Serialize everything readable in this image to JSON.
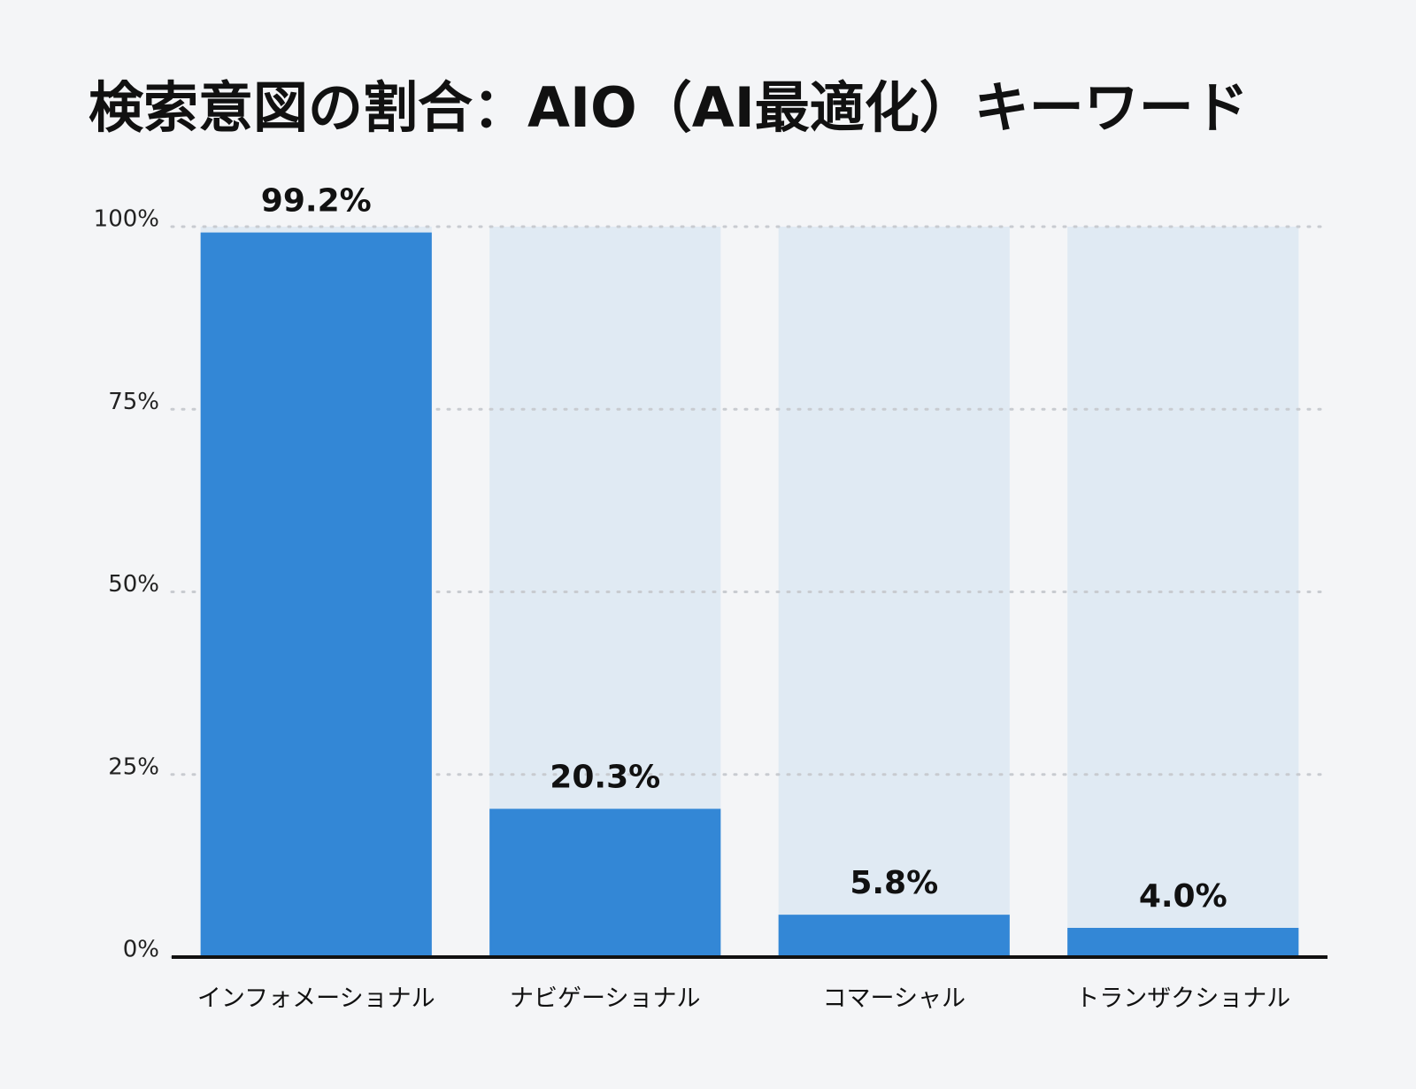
{
  "chart_data": {
    "type": "bar",
    "title": "検索意図の割合：AIO（AI最適化）キーワード",
    "categories": [
      "インフォメーショナル",
      "ナビゲーショナル",
      "コマーシャル",
      "トランザクショナル"
    ],
    "values": [
      99.2,
      20.3,
      5.8,
      4.0
    ],
    "value_labels": [
      "99.2%",
      "20.3%",
      "5.8%",
      "4.0%"
    ],
    "color": "#3387d6",
    "track_color": "#e0eaf3",
    "ylim": [
      0,
      100
    ],
    "yticks": [
      {
        "value": 0,
        "label": "0%"
      },
      {
        "value": 25,
        "label": "25%"
      },
      {
        "value": 50,
        "label": "50%"
      },
      {
        "value": 75,
        "label": "75%"
      },
      {
        "value": 100,
        "label": "100%"
      }
    ],
    "grid": true
  }
}
